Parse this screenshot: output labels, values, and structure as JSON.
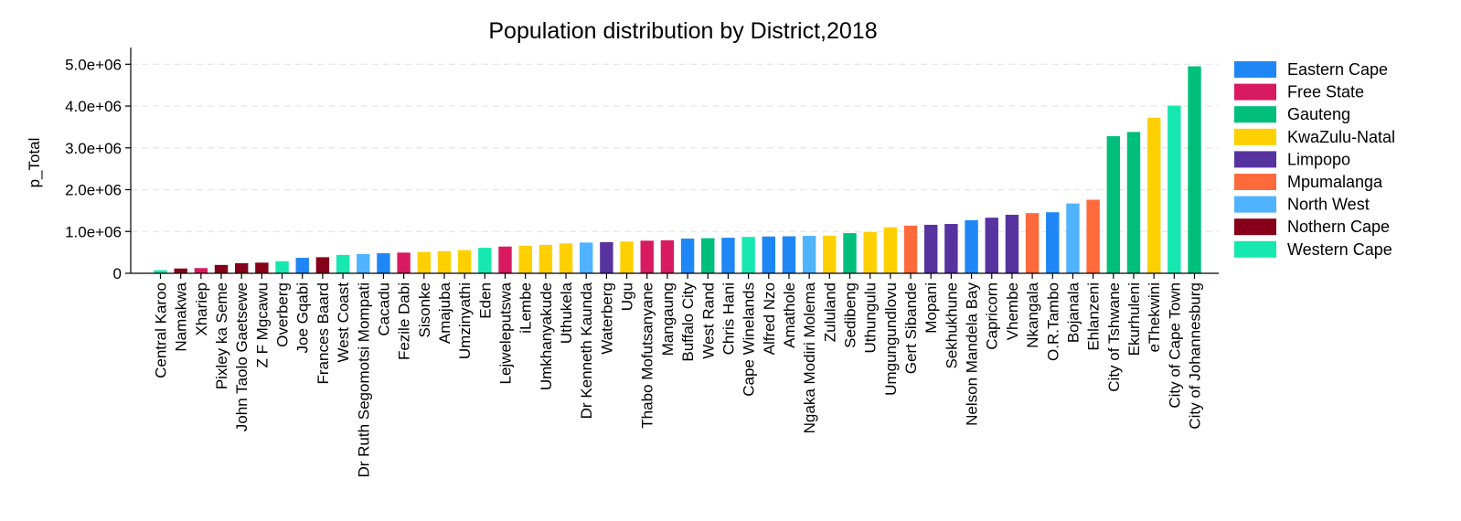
{
  "chart_data": {
    "type": "bar",
    "title": "Population distribution by District,2018",
    "xlabel": "",
    "ylabel": "p_Total",
    "ylim": [
      0,
      5400000
    ],
    "yticks": [
      0,
      1000000,
      2000000,
      3000000,
      4000000,
      5000000
    ],
    "ytick_labels": [
      "0",
      "1.0e+06",
      "2.0e+06",
      "3.0e+06",
      "4.0e+06",
      "5.0e+06"
    ],
    "grid": true,
    "legend_position": "right",
    "legend": [
      {
        "name": "Eastern Cape",
        "color": "#1f87f5"
      },
      {
        "name": "Free State",
        "color": "#d81b60"
      },
      {
        "name": "Gauteng",
        "color": "#00bf7d"
      },
      {
        "name": "KwaZulu-Natal",
        "color": "#ffd000"
      },
      {
        "name": "Limpopo",
        "color": "#5733a0"
      },
      {
        "name": "Mpumalanga",
        "color": "#ff6a3d"
      },
      {
        "name": "North West",
        "color": "#4fb3ff"
      },
      {
        "name": "Nothern Cape",
        "color": "#850018"
      },
      {
        "name": "Western Cape",
        "color": "#17e8b0"
      }
    ],
    "bars": [
      {
        "category": "Central Karoo",
        "value": 75000,
        "group": "Western Cape"
      },
      {
        "category": "Namakwa",
        "value": 115000,
        "group": "Nothern Cape"
      },
      {
        "category": "Xhariep",
        "value": 125000,
        "group": "Free State"
      },
      {
        "category": "Pixley ka Seme",
        "value": 200000,
        "group": "Nothern Cape"
      },
      {
        "category": "John Taolo Gaetsewe",
        "value": 240000,
        "group": "Nothern Cape"
      },
      {
        "category": "Z F Mgcawu",
        "value": 255000,
        "group": "Nothern Cape"
      },
      {
        "category": "Overberg",
        "value": 290000,
        "group": "Western Cape"
      },
      {
        "category": "Joe Gqabi",
        "value": 370000,
        "group": "Eastern Cape"
      },
      {
        "category": "Frances Baard",
        "value": 385000,
        "group": "Nothern Cape"
      },
      {
        "category": "West Coast",
        "value": 440000,
        "group": "Western Cape"
      },
      {
        "category": "Dr Ruth Segomotsi Mompati",
        "value": 460000,
        "group": "North West"
      },
      {
        "category": "Cacadu",
        "value": 480000,
        "group": "Eastern Cape"
      },
      {
        "category": "Fezile Dabi",
        "value": 495000,
        "group": "Free State"
      },
      {
        "category": "Sisonke",
        "value": 510000,
        "group": "KwaZulu-Natal"
      },
      {
        "category": "Amajuba",
        "value": 530000,
        "group": "KwaZulu-Natal"
      },
      {
        "category": "Umzinyathi",
        "value": 555000,
        "group": "KwaZulu-Natal"
      },
      {
        "category": "Eden",
        "value": 610000,
        "group": "Western Cape"
      },
      {
        "category": "Lejweleputswa",
        "value": 640000,
        "group": "Free State"
      },
      {
        "category": "iLembe",
        "value": 660000,
        "group": "KwaZulu-Natal"
      },
      {
        "category": "Umkhanyakude",
        "value": 680000,
        "group": "KwaZulu-Natal"
      },
      {
        "category": "Uthukela",
        "value": 715000,
        "group": "KwaZulu-Natal"
      },
      {
        "category": "Dr Kenneth Kaunda",
        "value": 735000,
        "group": "North West"
      },
      {
        "category": "Waterberg",
        "value": 745000,
        "group": "Limpopo"
      },
      {
        "category": "Ugu",
        "value": 760000,
        "group": "KwaZulu-Natal"
      },
      {
        "category": "Thabo Mofutsanyane",
        "value": 780000,
        "group": "Free State"
      },
      {
        "category": "Mangaung",
        "value": 790000,
        "group": "Free State"
      },
      {
        "category": "Buffalo City",
        "value": 830000,
        "group": "Eastern Cape"
      },
      {
        "category": "West Rand",
        "value": 840000,
        "group": "Gauteng"
      },
      {
        "category": "Chris Hani",
        "value": 850000,
        "group": "Eastern Cape"
      },
      {
        "category": "Cape Winelands",
        "value": 870000,
        "group": "Western Cape"
      },
      {
        "category": "Alfred Nzo",
        "value": 880000,
        "group": "Eastern Cape"
      },
      {
        "category": "Amathole",
        "value": 885000,
        "group": "Eastern Cape"
      },
      {
        "category": "Ngaka Modiri Molema",
        "value": 895000,
        "group": "North West"
      },
      {
        "category": "Zululand",
        "value": 900000,
        "group": "KwaZulu-Natal"
      },
      {
        "category": "Sedibeng",
        "value": 960000,
        "group": "Gauteng"
      },
      {
        "category": "Uthungulu",
        "value": 985000,
        "group": "KwaZulu-Natal"
      },
      {
        "category": "Umgungundlovu",
        "value": 1100000,
        "group": "KwaZulu-Natal"
      },
      {
        "category": "Gert Sibande",
        "value": 1140000,
        "group": "Mpumalanga"
      },
      {
        "category": "Mopani",
        "value": 1160000,
        "group": "Limpopo"
      },
      {
        "category": "Sekhukhune",
        "value": 1180000,
        "group": "Limpopo"
      },
      {
        "category": "Nelson Mandela Bay",
        "value": 1270000,
        "group": "Eastern Cape"
      },
      {
        "category": "Capricorn",
        "value": 1330000,
        "group": "Limpopo"
      },
      {
        "category": "Vhembe",
        "value": 1400000,
        "group": "Limpopo"
      },
      {
        "category": "Nkangala",
        "value": 1440000,
        "group": "Mpumalanga"
      },
      {
        "category": "O.R.Tambo",
        "value": 1460000,
        "group": "Eastern Cape"
      },
      {
        "category": "Bojanala",
        "value": 1670000,
        "group": "North West"
      },
      {
        "category": "Ehlanzeni",
        "value": 1760000,
        "group": "Mpumalanga"
      },
      {
        "category": "City of Tshwane",
        "value": 3280000,
        "group": "Gauteng"
      },
      {
        "category": "Ekurhuleni",
        "value": 3380000,
        "group": "Gauteng"
      },
      {
        "category": "eThekwini",
        "value": 3720000,
        "group": "KwaZulu-Natal"
      },
      {
        "category": "City of Cape Town",
        "value": 4010000,
        "group": "Western Cape"
      },
      {
        "category": "City of Johannesburg",
        "value": 4950000,
        "group": "Gauteng"
      }
    ]
  }
}
